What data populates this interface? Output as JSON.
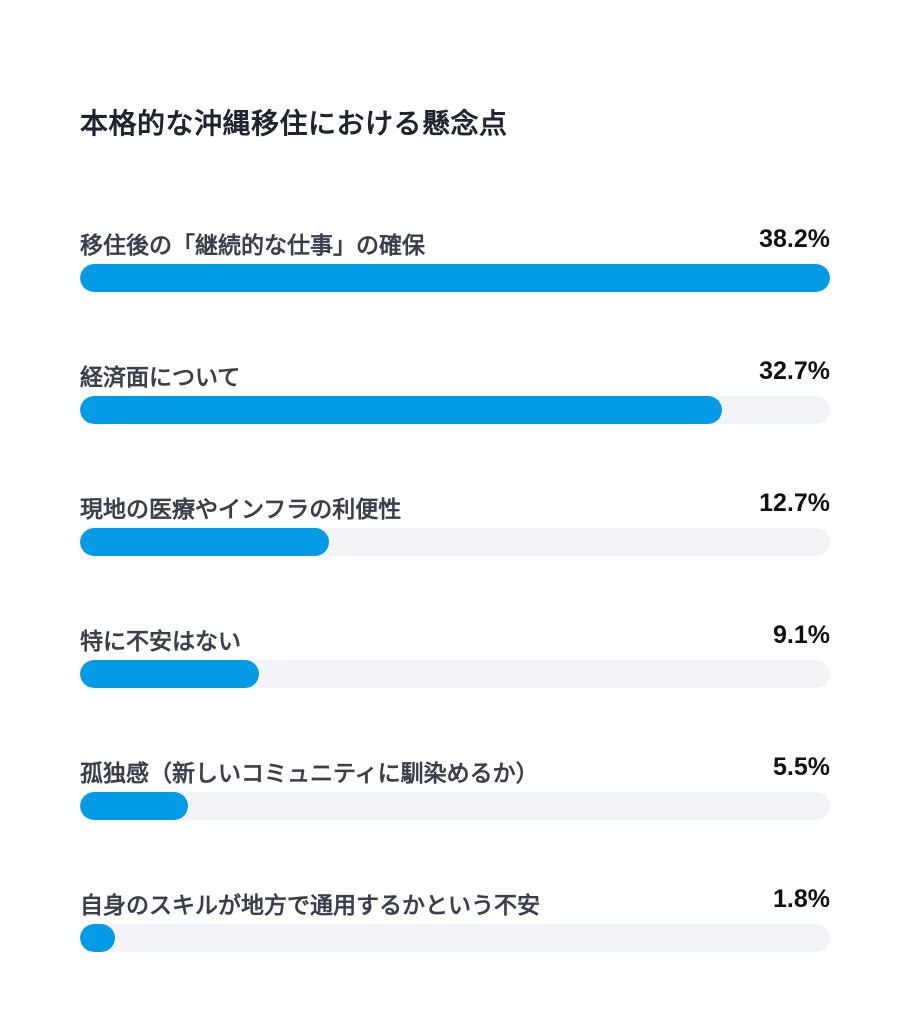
{
  "chart_data": {
    "type": "bar",
    "orientation": "horizontal",
    "title": "本格的な沖縄移住における懸念点",
    "bar_color": "#039be5",
    "track_color": "#f3f4f8",
    "max_value": 38.2,
    "categories": [
      "移住後の「継続的な仕事」の確保",
      "経済面について",
      "現地の医療やインフラの利便性",
      "特に不安はない",
      "孤独感（新しいコミュニティに馴染めるか）",
      "自身のスキルが地方で通用するかという不安"
    ],
    "values": [
      38.2,
      32.7,
      12.7,
      9.1,
      5.5,
      1.8
    ],
    "value_labels": [
      "38.2%",
      "32.7%",
      "12.7%",
      "9.1%",
      "5.5%",
      "1.8%"
    ]
  }
}
